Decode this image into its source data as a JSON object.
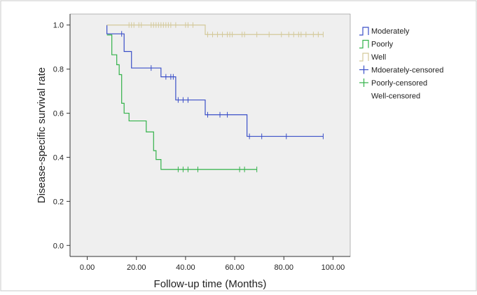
{
  "chart_data": {
    "type": "line",
    "title": "",
    "xlabel": "Follow-up time (Months)",
    "ylabel": "Disease-specific survival rate",
    "xlim": [
      -7,
      107
    ],
    "ylim": [
      -0.05,
      1.05
    ],
    "xticks": [
      0,
      20,
      40,
      60,
      80,
      100
    ],
    "xtick_labels": [
      "0.00",
      "20.00",
      "40.00",
      "60.00",
      "80.00",
      "100.00"
    ],
    "yticks": [
      0.0,
      0.2,
      0.4,
      0.6,
      0.8,
      1.0
    ],
    "ytick_labels": [
      "0.0",
      "0.2",
      "0.4",
      "0.6",
      "0.8",
      "1.0"
    ],
    "grid": false,
    "legend_position": "right",
    "series": [
      {
        "name": "Moderately",
        "color": "#3a4fc8",
        "steps": [
          [
            8,
            1.0
          ],
          [
            8,
            0.96
          ],
          [
            15,
            0.96
          ],
          [
            15,
            0.88
          ],
          [
            18,
            0.88
          ],
          [
            18,
            0.805
          ],
          [
            30,
            0.805
          ],
          [
            30,
            0.765
          ],
          [
            36,
            0.765
          ],
          [
            36,
            0.66
          ],
          [
            48,
            0.66
          ],
          [
            48,
            0.593
          ],
          [
            65,
            0.593
          ],
          [
            65,
            0.495
          ],
          [
            96,
            0.495
          ]
        ],
        "censored_name": "Mdoerately-censored",
        "censored": [
          [
            14,
            0.96
          ],
          [
            26,
            0.805
          ],
          [
            32,
            0.765
          ],
          [
            34,
            0.765
          ],
          [
            35,
            0.765
          ],
          [
            37,
            0.66
          ],
          [
            39,
            0.66
          ],
          [
            41,
            0.66
          ],
          [
            49,
            0.593
          ],
          [
            54,
            0.593
          ],
          [
            57,
            0.593
          ],
          [
            66,
            0.495
          ],
          [
            71,
            0.495
          ],
          [
            81,
            0.495
          ],
          [
            96,
            0.495
          ]
        ]
      },
      {
        "name": "Poorly",
        "color": "#33b24a",
        "steps": [
          [
            8,
            0.955
          ],
          [
            10,
            0.955
          ],
          [
            10,
            0.865
          ],
          [
            12,
            0.865
          ],
          [
            12,
            0.82
          ],
          [
            13,
            0.82
          ],
          [
            13,
            0.775
          ],
          [
            14,
            0.775
          ],
          [
            14,
            0.645
          ],
          [
            15,
            0.645
          ],
          [
            15,
            0.6
          ],
          [
            17,
            0.6
          ],
          [
            17,
            0.565
          ],
          [
            24,
            0.565
          ],
          [
            24,
            0.515
          ],
          [
            27,
            0.515
          ],
          [
            27,
            0.43
          ],
          [
            28,
            0.43
          ],
          [
            28,
            0.39
          ],
          [
            30,
            0.39
          ],
          [
            30,
            0.345
          ],
          [
            69,
            0.345
          ]
        ],
        "censored_name": "Poorly-censored",
        "censored": [
          [
            37,
            0.345
          ],
          [
            39,
            0.345
          ],
          [
            41,
            0.345
          ],
          [
            45,
            0.345
          ],
          [
            62,
            0.345
          ],
          [
            64,
            0.345
          ],
          [
            69,
            0.345
          ]
        ]
      },
      {
        "name": "Well",
        "color": "#d4c99a",
        "steps": [
          [
            8,
            1.0
          ],
          [
            48,
            1.0
          ],
          [
            48,
            0.957
          ],
          [
            96,
            0.957
          ]
        ],
        "censored_name": "Well-censored",
        "censored": [
          [
            17,
            1.0
          ],
          [
            18,
            1.0
          ],
          [
            19,
            1.0
          ],
          [
            21,
            1.0
          ],
          [
            22,
            1.0
          ],
          [
            26,
            1.0
          ],
          [
            27,
            1.0
          ],
          [
            28,
            1.0
          ],
          [
            29,
            1.0
          ],
          [
            30,
            1.0
          ],
          [
            31,
            1.0
          ],
          [
            32,
            1.0
          ],
          [
            33,
            1.0
          ],
          [
            34,
            1.0
          ],
          [
            36,
            1.0
          ],
          [
            40,
            1.0
          ],
          [
            41,
            1.0
          ],
          [
            43,
            1.0
          ],
          [
            49,
            0.957
          ],
          [
            51,
            0.957
          ],
          [
            53,
            0.957
          ],
          [
            55,
            0.957
          ],
          [
            57,
            0.957
          ],
          [
            58,
            0.957
          ],
          [
            59,
            0.957
          ],
          [
            63,
            0.957
          ],
          [
            64,
            0.957
          ],
          [
            69,
            0.957
          ],
          [
            74,
            0.957
          ],
          [
            79,
            0.957
          ],
          [
            82,
            0.957
          ],
          [
            84,
            0.957
          ],
          [
            86,
            0.957
          ],
          [
            87,
            0.957
          ],
          [
            89,
            0.957
          ],
          [
            92,
            0.957
          ],
          [
            94,
            0.957
          ],
          [
            96,
            0.957
          ]
        ]
      }
    ]
  },
  "colors": {
    "plot_background": "#efefef",
    "axis": "#333333",
    "frame_border": "#c8c8c8"
  }
}
